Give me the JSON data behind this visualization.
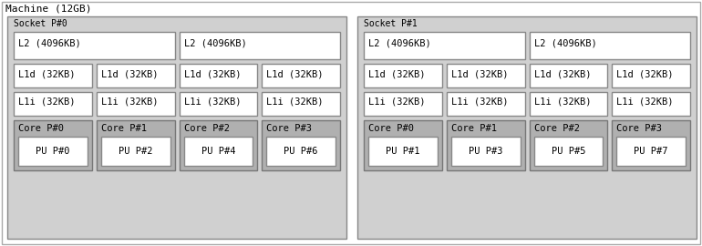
{
  "title": "Machine (12GB)",
  "machine_bg": "#ffffff",
  "machine_border": "#aaaaaa",
  "socket_fill": "#d0d0d0",
  "socket_border": "#888888",
  "l2_fill": "#ffffff",
  "l2_border": "#888888",
  "l1_fill": "#ffffff",
  "l1_border": "#888888",
  "core_fill": "#b0b0b0",
  "core_border": "#777777",
  "pu_fill": "#ffffff",
  "pu_border": "#888888",
  "sockets": [
    {
      "label": "Socket P#0",
      "l2_labels": [
        "L2 (4096KB)",
        "L2 (4096KB)"
      ],
      "l1d_labels": [
        "L1d (32KB)",
        "L1d (32KB)",
        "L1d (32KB)",
        "L1d (32KB)"
      ],
      "l1i_labels": [
        "L1i (32KB)",
        "L1i (32KB)",
        "L1i (32KB)",
        "L1i (32KB)"
      ],
      "cores": [
        {
          "label": "Core P#0",
          "pu": "PU P#0"
        },
        {
          "label": "Core P#1",
          "pu": "PU P#2"
        },
        {
          "label": "Core P#2",
          "pu": "PU P#4"
        },
        {
          "label": "Core P#3",
          "pu": "PU P#6"
        }
      ]
    },
    {
      "label": "Socket P#1",
      "l2_labels": [
        "L2 (4096KB)",
        "L2 (4096KB)"
      ],
      "l1d_labels": [
        "L1d (32KB)",
        "L1d (32KB)",
        "L1d (32KB)",
        "L1d (32KB)"
      ],
      "l1i_labels": [
        "L1i (32KB)",
        "L1i (32KB)",
        "L1i (32KB)",
        "L1i (32KB)"
      ],
      "cores": [
        {
          "label": "Core P#0",
          "pu": "PU P#1"
        },
        {
          "label": "Core P#1",
          "pu": "PU P#3"
        },
        {
          "label": "Core P#2",
          "pu": "PU P#5"
        },
        {
          "label": "Core P#3",
          "pu": "PU P#7"
        }
      ]
    }
  ],
  "font_size": 7.0,
  "title_font_size": 8.0,
  "label_font_size": 7.5
}
